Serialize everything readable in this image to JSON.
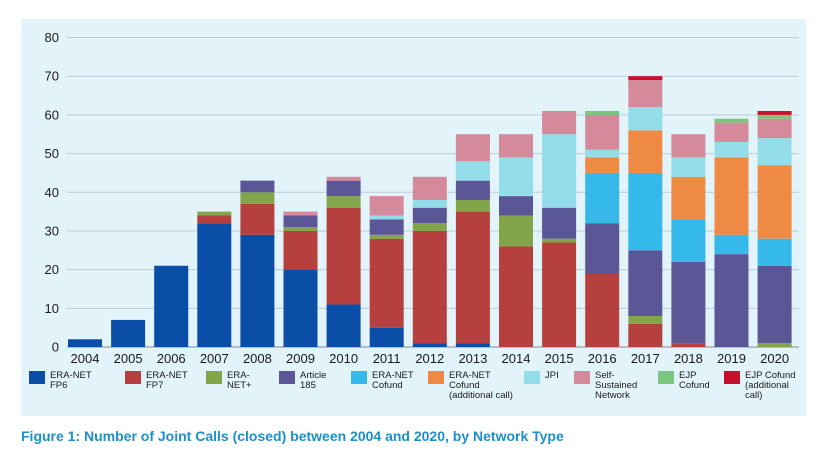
{
  "caption": "Figure 1: Number of Joint Calls (closed) between 2004 and 2020, by Network Type",
  "chart_data": {
    "type": "bar",
    "stacked": true,
    "title": "",
    "xlabel": "",
    "ylabel": "",
    "ylim": [
      0,
      80
    ],
    "yticks": [
      0,
      10,
      20,
      30,
      40,
      50,
      60,
      70,
      80
    ],
    "grid": true,
    "legend_position": "bottom",
    "categories": [
      "2004",
      "2005",
      "2006",
      "2007",
      "2008",
      "2009",
      "2010",
      "2011",
      "2012",
      "2013",
      "2014",
      "2015",
      "2016",
      "2017",
      "2018",
      "2019",
      "2020"
    ],
    "series": [
      {
        "name": "ERA-NET FP6",
        "label": "ERA-NET\nFP6",
        "color": "#0a4ea8",
        "values": [
          2,
          7,
          21,
          32,
          29,
          20,
          11,
          5,
          1,
          1,
          0,
          0,
          0,
          0,
          0,
          0,
          0
        ]
      },
      {
        "name": "ERA-NET FP7",
        "label": "ERA-NET\nFP7",
        "color": "#b5403d",
        "values": [
          0,
          0,
          0,
          2,
          8,
          10,
          25,
          23,
          29,
          34,
          26,
          27,
          19,
          6,
          1,
          0,
          0
        ]
      },
      {
        "name": "ERA-NET+",
        "label": "ERA-\nNET+",
        "color": "#82a54a",
        "values": [
          0,
          0,
          0,
          1,
          3,
          1,
          3,
          1,
          2,
          3,
          8,
          1,
          0,
          2,
          0,
          0,
          1
        ]
      },
      {
        "name": "Article 185",
        "label": "Article\n185",
        "color": "#5b5696",
        "values": [
          0,
          0,
          0,
          0,
          3,
          3,
          4,
          4,
          4,
          5,
          5,
          8,
          13,
          17,
          21,
          24,
          20
        ]
      },
      {
        "name": "ERA-NET Cofund",
        "label": "ERA-NET\nCofund",
        "color": "#35b8ea",
        "values": [
          0,
          0,
          0,
          0,
          0,
          0,
          0,
          0,
          0,
          0,
          0,
          0,
          13,
          20,
          11,
          5,
          7
        ]
      },
      {
        "name": "ERA-NET Cofund (additional call)",
        "label": "ERA-NET\nCofund\n(additional call)",
        "color": "#ef8a45",
        "values": [
          0,
          0,
          0,
          0,
          0,
          0,
          0,
          0,
          0,
          0,
          0,
          0,
          4,
          11,
          11,
          20,
          19
        ]
      },
      {
        "name": "JPI",
        "label": "JPI",
        "color": "#93dcea",
        "values": [
          0,
          0,
          0,
          0,
          0,
          0,
          0,
          1,
          2,
          5,
          10,
          19,
          2,
          6,
          5,
          4,
          7
        ]
      },
      {
        "name": "Self-Sustained Network",
        "label": "Self-\nSustained\nNetwork",
        "color": "#d48a9a",
        "values": [
          0,
          0,
          0,
          0,
          0,
          1,
          1,
          5,
          6,
          7,
          6,
          6,
          9,
          7,
          6,
          5,
          5
        ]
      },
      {
        "name": "EJP Cofund",
        "label": "EJP\nCofund",
        "color": "#7cc67c",
        "values": [
          0,
          0,
          0,
          0,
          0,
          0,
          0,
          0,
          0,
          0,
          0,
          0,
          1,
          0,
          0,
          1,
          1
        ]
      },
      {
        "name": "EJP Cofund (additional call)",
        "label": "EJP Cofund\n(additional\ncall)",
        "color": "#c8102e",
        "values": [
          0,
          0,
          0,
          0,
          0,
          0,
          0,
          0,
          0,
          0,
          0,
          0,
          0,
          1,
          0,
          0,
          1
        ]
      }
    ]
  }
}
